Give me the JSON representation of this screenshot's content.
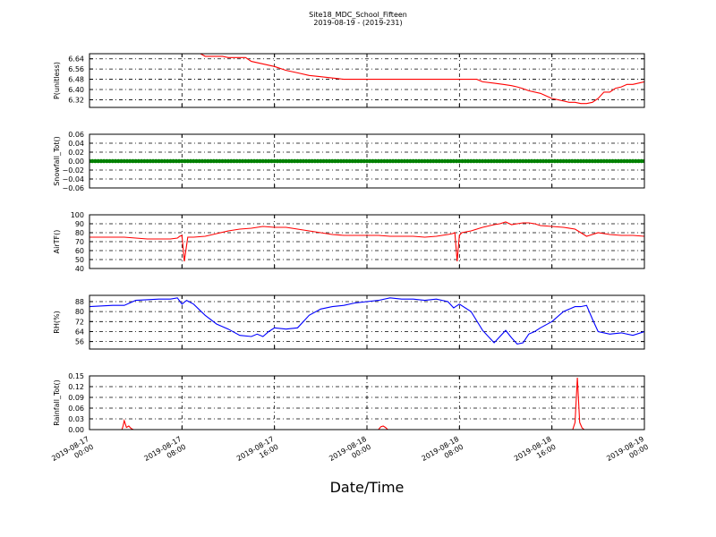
{
  "header": {
    "title": "Site18_MDC_School_Fifteen",
    "subtitle": "2019-08-19 - (2019-231)"
  },
  "footer": {
    "xlabel": "Date/Time"
  },
  "chart_data": [
    {
      "type": "line",
      "id": "p",
      "ylabel": "P(unitless)",
      "ylim": [
        6.26,
        6.68
      ],
      "yticks": [
        6.32,
        6.4,
        6.48,
        6.56,
        6.64
      ],
      "ytick_labels": [
        "6.32",
        "6.40",
        "6.48",
        "6.56",
        "6.64"
      ],
      "color": "#ff0000",
      "grid": true,
      "series": [
        {
          "x": [
            0,
            2,
            4,
            6,
            8,
            8.2,
            8.5,
            9,
            9.6,
            10,
            10.4,
            11,
            11.5,
            12,
            12.4,
            13.5,
            14,
            15,
            16,
            17,
            18,
            19,
            20,
            22,
            24,
            26,
            28,
            30,
            32,
            32.4,
            32.8,
            33.5,
            34,
            35,
            35.8,
            36.5,
            37,
            37.4,
            38,
            39,
            39.5,
            40,
            40.5,
            41,
            41.5,
            42,
            42.5,
            43,
            43.5,
            44,
            44.5,
            45,
            45.5,
            46,
            46.5,
            47,
            48
          ],
          "y": [
            6.68,
            6.68,
            6.68,
            6.68,
            6.68,
            6.68,
            6.68,
            6.68,
            6.68,
            6.66,
            6.66,
            6.66,
            6.66,
            6.65,
            6.65,
            6.65,
            6.62,
            6.6,
            6.58,
            6.55,
            6.53,
            6.51,
            6.5,
            6.48,
            6.48,
            6.48,
            6.48,
            6.48,
            6.48,
            6.48,
            6.48,
            6.48,
            6.46,
            6.45,
            6.44,
            6.43,
            6.42,
            6.41,
            6.39,
            6.37,
            6.35,
            6.33,
            6.32,
            6.31,
            6.3,
            6.3,
            6.29,
            6.29,
            6.3,
            6.33,
            6.38,
            6.38,
            6.41,
            6.42,
            6.44,
            6.44,
            6.46
          ]
        }
      ]
    },
    {
      "type": "scatter",
      "id": "snow",
      "ylabel": "Snowfall_Tot()",
      "ylim": [
        -0.06,
        0.06
      ],
      "yticks": [
        -0.06,
        -0.04,
        -0.02,
        0.0,
        0.02,
        0.04,
        0.06
      ],
      "ytick_labels": [
        "−0.06",
        "−0.04",
        "−0.02",
        "0.00",
        "0.02",
        "0.04",
        "0.06"
      ],
      "color": "#008000",
      "grid": true,
      "series": [
        {
          "x_range": [
            0,
            48
          ],
          "step": 0.25,
          "y_constant": 0.0
        }
      ]
    },
    {
      "type": "line",
      "id": "air",
      "ylabel": "AirTF()",
      "ylim": [
        40,
        100
      ],
      "yticks": [
        40,
        50,
        60,
        70,
        80,
        90,
        100
      ],
      "ytick_labels": [
        "40",
        "50",
        "60",
        "70",
        "80",
        "90",
        "100"
      ],
      "color": "#ff0000",
      "grid": true,
      "series": [
        {
          "x": [
            0,
            1,
            2,
            3,
            4,
            5,
            6,
            7,
            7.6,
            7.8,
            8.0,
            8.2,
            8.5,
            9,
            10,
            11,
            12,
            13,
            14,
            14.5,
            15,
            16,
            17,
            18,
            19,
            20,
            21,
            22,
            23,
            24,
            25,
            26,
            27,
            28,
            29,
            30,
            31,
            31.4,
            31.6,
            31.8,
            32.0,
            32.2,
            33,
            34,
            35,
            35.5,
            36,
            36.5,
            37,
            37.5,
            38,
            38.5,
            39,
            40,
            41,
            42,
            42.5,
            43,
            43.5,
            44,
            45,
            46,
            47,
            48
          ],
          "y": [
            75,
            75,
            75,
            75,
            74,
            73,
            73,
            73,
            74,
            76,
            77,
            48,
            75,
            75,
            76,
            79,
            82,
            84,
            85,
            86,
            87,
            86,
            86,
            84,
            82,
            80,
            78,
            77,
            77,
            77,
            77,
            76,
            76,
            76,
            75,
            76,
            78,
            79,
            80,
            48,
            77,
            80,
            82,
            86,
            89,
            90,
            92,
            89,
            90,
            91,
            91,
            90,
            88,
            87,
            86,
            84,
            80,
            76,
            78,
            80,
            78,
            77,
            77,
            76
          ]
        }
      ]
    },
    {
      "type": "line",
      "id": "rh",
      "ylabel": "RH(%)",
      "ylim": [
        50,
        93
      ],
      "yticks": [
        56,
        64,
        72,
        80,
        88
      ],
      "ytick_labels": [
        "56",
        "64",
        "72",
        "80",
        "88"
      ],
      "color": "#0000ff",
      "grid": true,
      "series": [
        {
          "x": [
            0,
            2,
            3,
            4,
            6,
            7,
            7.6,
            8.0,
            8.4,
            9,
            10,
            11,
            12,
            13,
            14,
            14.5,
            15,
            15.5,
            16,
            17,
            18,
            19,
            20,
            21,
            22,
            23,
            24,
            25,
            26,
            27,
            28,
            29,
            30,
            31,
            31.5,
            32,
            33,
            34,
            35,
            36,
            36.5,
            37,
            37.5,
            38,
            38.5,
            39,
            40,
            41,
            42,
            42.5,
            43,
            43.5,
            44,
            45,
            46,
            47,
            48
          ],
          "y": [
            84,
            85,
            85,
            89,
            90,
            90,
            91,
            86,
            89,
            86,
            77,
            70,
            66,
            61,
            60,
            62,
            60,
            64,
            67,
            66,
            67,
            77,
            82,
            84,
            85,
            87,
            88,
            89,
            91,
            90,
            90,
            89,
            90,
            88,
            83,
            86,
            80,
            65,
            55,
            65,
            59,
            54,
            55,
            62,
            64,
            67,
            72,
            80,
            84,
            84,
            85,
            74,
            64,
            62,
            63,
            61,
            64
          ]
        }
      ]
    },
    {
      "type": "line",
      "id": "rain",
      "ylabel": "Rainfall_Tot()",
      "ylim": [
        0,
        0.15
      ],
      "yticks": [
        0.0,
        0.03,
        0.06,
        0.09,
        0.12,
        0.15
      ],
      "ytick_labels": [
        "0.00",
        "0.03",
        "0.06",
        "0.09",
        "0.12",
        "0.15"
      ],
      "color": "#ff0000",
      "grid": true,
      "series": [
        {
          "x": [
            0,
            2.8,
            2.9,
            3.0,
            3.2,
            3.4,
            3.6,
            3.8,
            4,
            25,
            25.2,
            25.4,
            25.6,
            25.8,
            26,
            41.8,
            42.0,
            42.2,
            42.4,
            42.6,
            42.8,
            43,
            48
          ],
          "y": [
            0,
            0,
            0.01,
            0.025,
            0.006,
            0.01,
            0.003,
            0,
            0,
            0,
            0.008,
            0.01,
            0.006,
            0,
            0,
            0,
            0.02,
            0.145,
            0.02,
            0.005,
            0,
            0,
            0
          ]
        }
      ]
    }
  ],
  "x_axis": {
    "range_hours": [
      0,
      48
    ],
    "ticks": [
      0,
      8,
      16,
      24,
      32,
      40,
      48
    ],
    "tick_labels": [
      [
        "2019-08-17",
        "00:00"
      ],
      [
        "2019-08-17",
        "08:00"
      ],
      [
        "2019-08-17",
        "16:00"
      ],
      [
        "2019-08-18",
        "00:00"
      ],
      [
        "2019-08-18",
        "08:00"
      ],
      [
        "2019-08-18",
        "16:00"
      ],
      [
        "2019-08-19",
        "00:00"
      ]
    ]
  }
}
